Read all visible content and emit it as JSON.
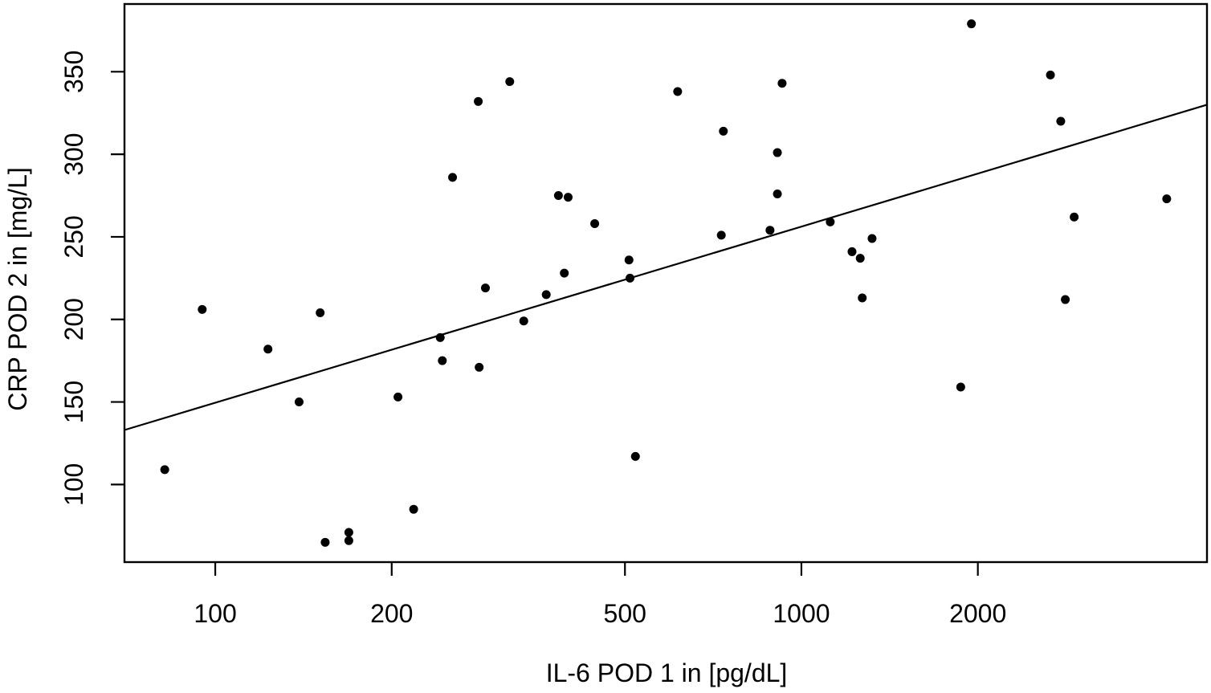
{
  "figure": {
    "background_color": "#ffffff",
    "foreground_color": "#000000"
  },
  "chart_data": {
    "type": "scatter",
    "title": "",
    "xlabel": "IL-6 POD 1 in [pg/dL]",
    "ylabel": "CRP POD 2 in [mg/L]",
    "x_scale": "log10",
    "y_scale": "linear",
    "x_range": [
      70,
      4920
    ],
    "y_range": [
      53,
      391
    ],
    "x_ticks": [
      100,
      200,
      500,
      1000,
      2000
    ],
    "y_ticks": [
      100,
      150,
      200,
      250,
      300,
      350
    ],
    "grid": false,
    "legend": null,
    "marker": {
      "shape": "filled-circle",
      "radius_px": 5.5,
      "color": "#000000"
    },
    "points": [
      [
        82,
        109
      ],
      [
        95,
        206
      ],
      [
        123,
        182
      ],
      [
        139,
        150
      ],
      [
        151,
        204
      ],
      [
        154,
        65
      ],
      [
        169,
        71
      ],
      [
        169,
        66
      ],
      [
        205,
        153
      ],
      [
        218,
        85
      ],
      [
        242,
        189
      ],
      [
        244,
        175
      ],
      [
        254,
        286
      ],
      [
        281,
        332
      ],
      [
        282,
        171
      ],
      [
        289,
        219
      ],
      [
        318,
        344
      ],
      [
        336,
        199
      ],
      [
        367,
        215
      ],
      [
        385,
        275
      ],
      [
        394,
        228
      ],
      [
        400,
        274
      ],
      [
        444,
        258
      ],
      [
        508,
        236
      ],
      [
        510,
        225
      ],
      [
        521,
        117
      ],
      [
        615,
        338
      ],
      [
        730,
        251
      ],
      [
        736,
        314
      ],
      [
        884,
        254
      ],
      [
        910,
        301
      ],
      [
        910,
        276
      ],
      [
        927,
        343
      ],
      [
        1120,
        259
      ],
      [
        1220,
        241
      ],
      [
        1260,
        237
      ],
      [
        1270,
        213
      ],
      [
        1320,
        249
      ],
      [
        1870,
        159
      ],
      [
        1950,
        379
      ],
      [
        2660,
        348
      ],
      [
        2770,
        320
      ],
      [
        2820,
        212
      ],
      [
        2920,
        262
      ],
      [
        4200,
        273
      ]
    ],
    "regression_line": {
      "x1": 70,
      "y1": 133,
      "x2": 4920,
      "y2": 330
    }
  }
}
